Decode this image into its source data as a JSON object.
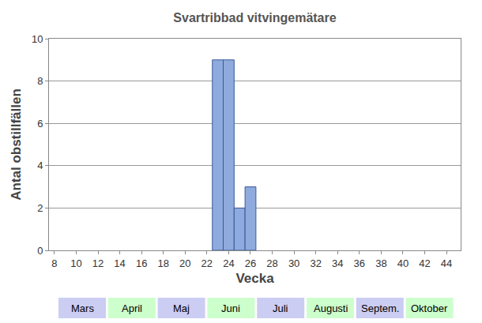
{
  "chart_data": {
    "type": "bar",
    "title": "Svartribbad vitvingemätare",
    "x_label": "Vecka",
    "y_label": "Antal obstillfällen",
    "x": [
      23,
      24,
      25,
      26
    ],
    "values": [
      9,
      9,
      2,
      3
    ],
    "color": "#8faadc",
    "xlim": [
      7.5,
      45.3
    ],
    "xticks": [
      8,
      10,
      12,
      14,
      16,
      18,
      20,
      22,
      24,
      26,
      28,
      30,
      32,
      34,
      36,
      38,
      40,
      42,
      44
    ],
    "ylim": [
      0,
      10
    ],
    "yticks": [
      0,
      2,
      4,
      6,
      8,
      10
    ],
    "grid": true,
    "annotations": [
      "Mars",
      "April",
      "Maj",
      "Juni",
      "Juli",
      "Augusti",
      "Septem.",
      "Oktober"
    ]
  }
}
